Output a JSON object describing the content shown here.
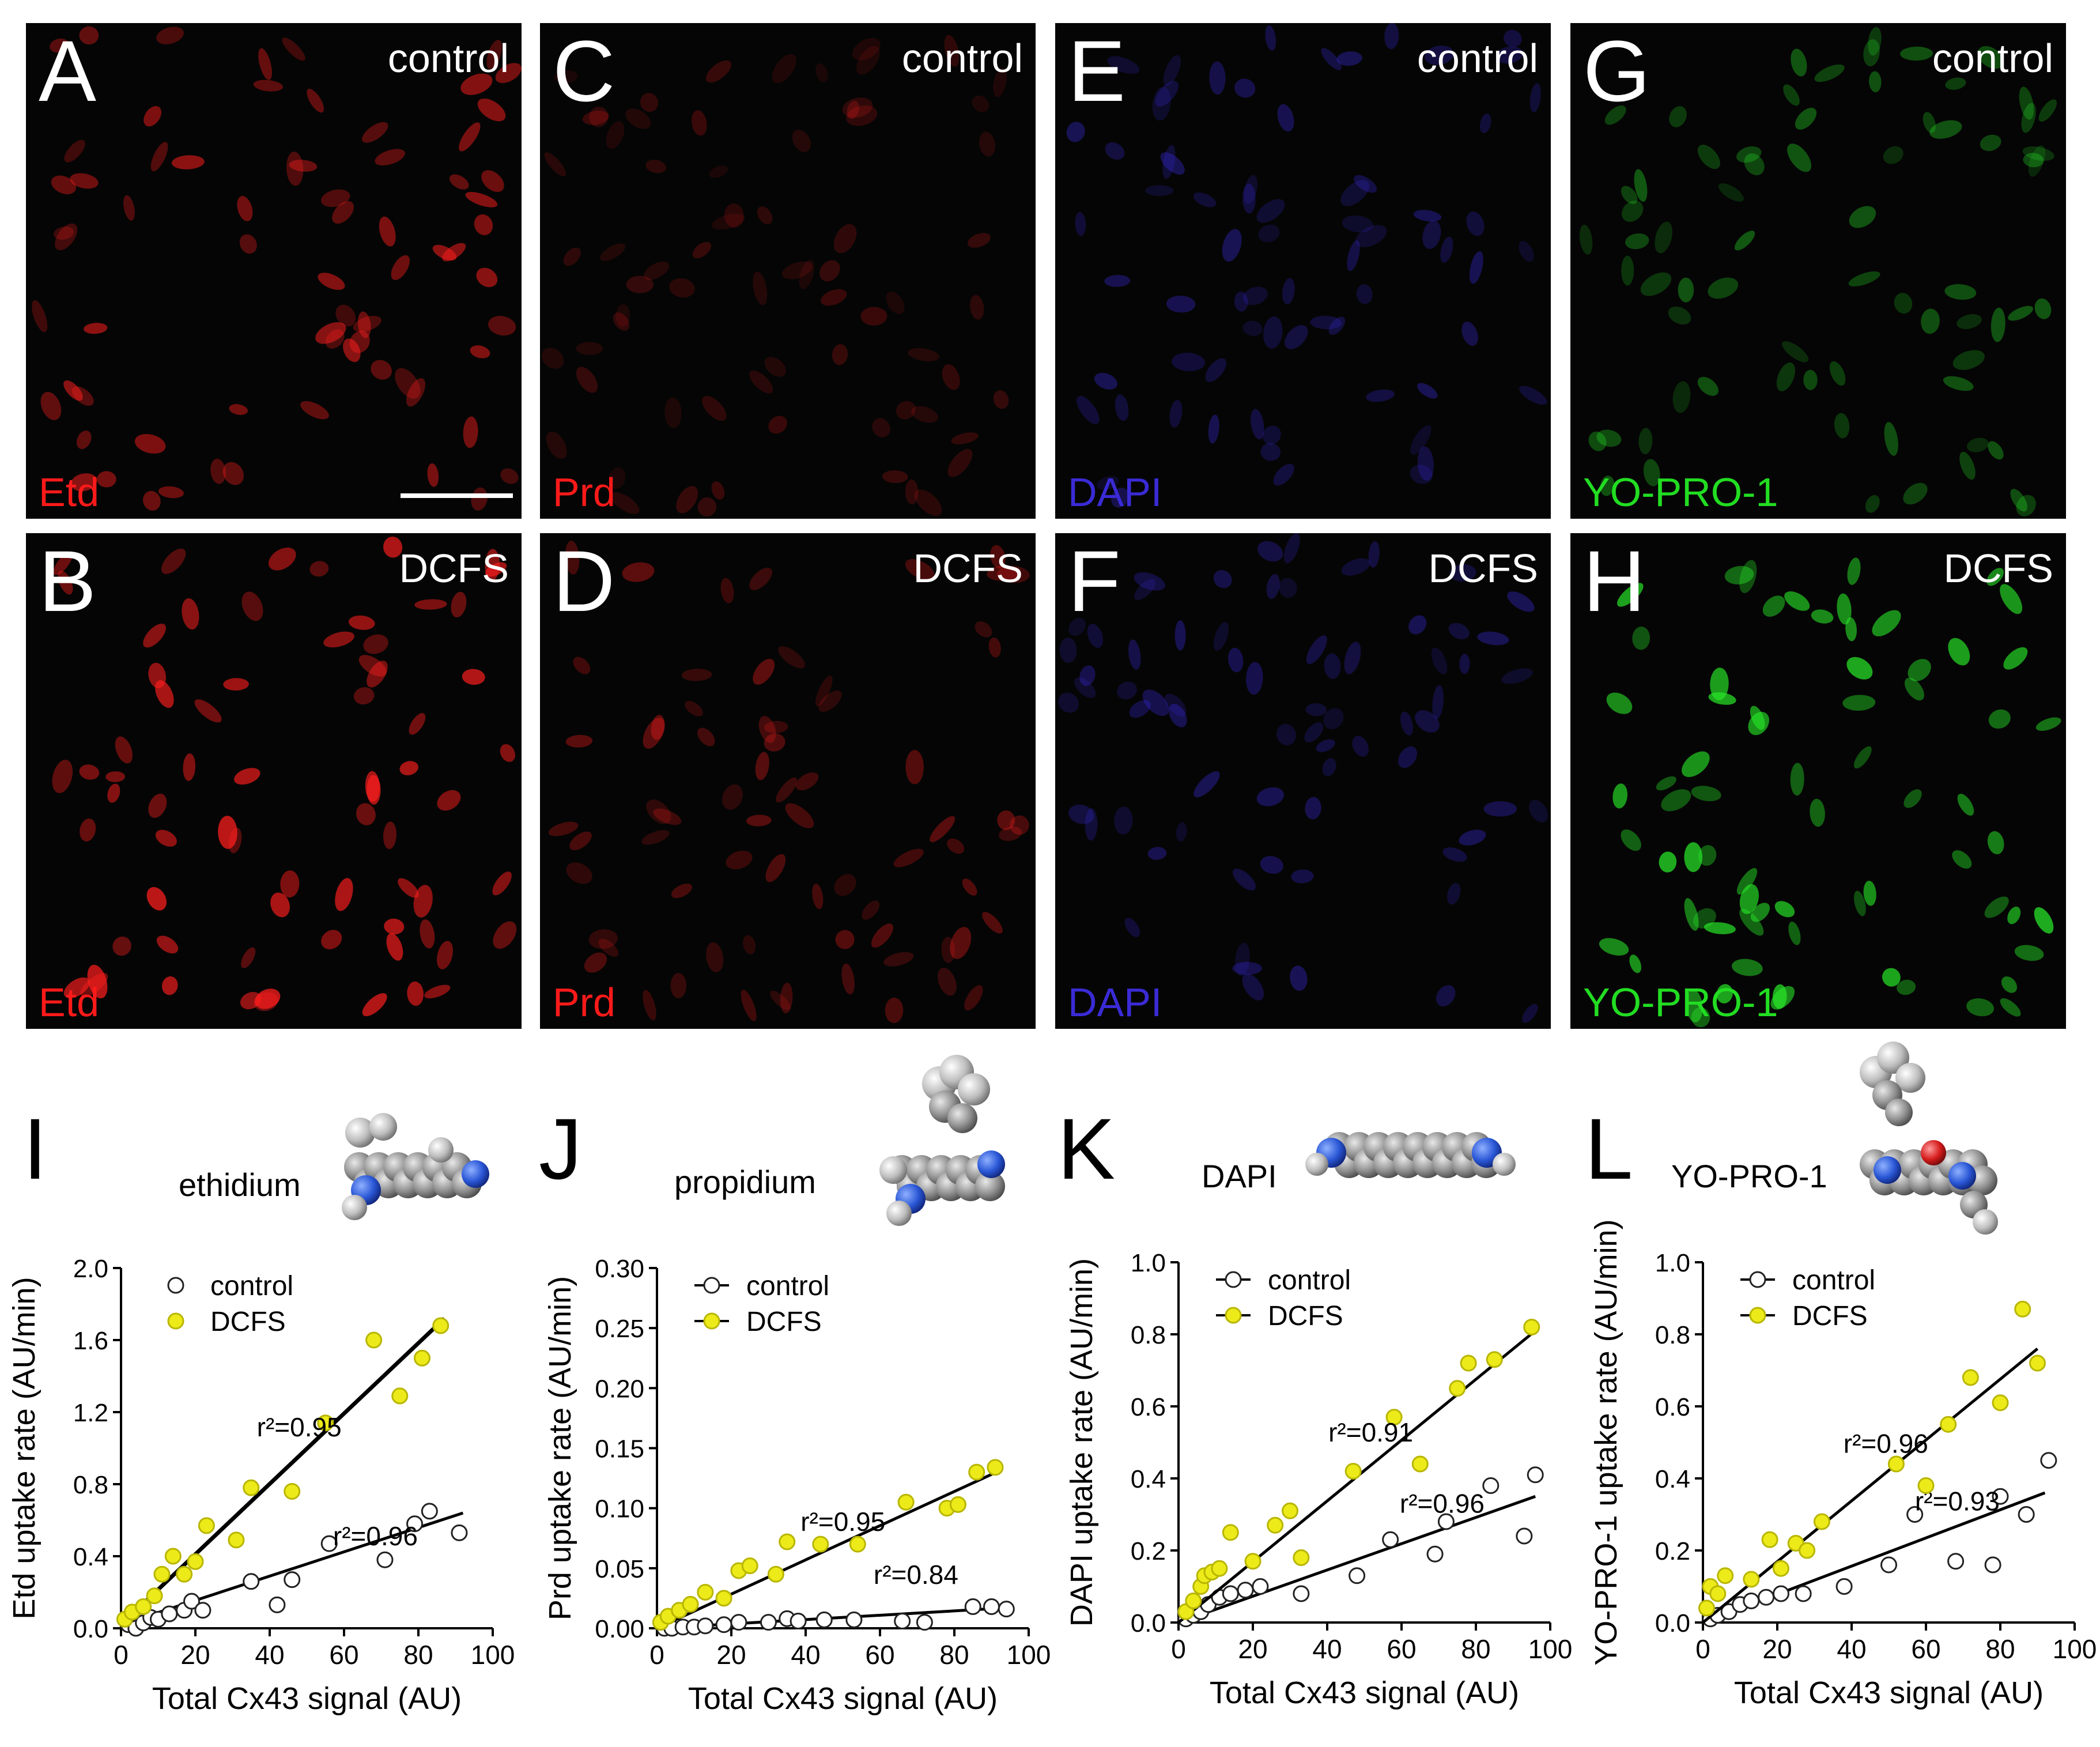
{
  "colors": {
    "red": "#ff1a1a",
    "blue": "#3a2bd6",
    "green": "#22dd22",
    "yellow_marker": "#ecea18",
    "open_marker_stroke": "#222222"
  },
  "micrographs": [
    {
      "letter": "A",
      "condition": "control",
      "dye": "Etd",
      "channel": "red",
      "cells": "sparse",
      "scale_bar": true
    },
    {
      "letter": "B",
      "condition": "DCFS",
      "dye": "Etd",
      "channel": "red",
      "cells": "bright"
    },
    {
      "letter": "C",
      "condition": "control",
      "dye": "Prd",
      "channel": "red",
      "cells": "faint"
    },
    {
      "letter": "D",
      "condition": "DCFS",
      "dye": "Prd",
      "channel": "red",
      "cells": "dim"
    },
    {
      "letter": "E",
      "condition": "control",
      "dye": "DAPI",
      "channel": "blue",
      "cells": "dim"
    },
    {
      "letter": "F",
      "condition": "DCFS",
      "dye": "DAPI",
      "channel": "blue",
      "cells": "dim"
    },
    {
      "letter": "G",
      "condition": "control",
      "dye": "YO-PRO-1",
      "channel": "green",
      "cells": "dim"
    },
    {
      "letter": "H",
      "condition": "DCFS",
      "dye": "YO-PRO-1",
      "channel": "green",
      "cells": "bright"
    }
  ],
  "chart_data": [
    {
      "letter": "I",
      "molecule": "ethidium",
      "type": "scatter",
      "xlabel": "Total Cx43 signal (AU)",
      "ylabel": "Etd uptake rate (AU/min)",
      "xlim": [
        0,
        100
      ],
      "ylim": [
        0,
        2.0
      ],
      "xticks": [
        "0",
        "20",
        "40",
        "60",
        "80",
        "100"
      ],
      "yticks": [
        "0.0",
        "0.4",
        "0.8",
        "1.2",
        "1.6",
        "2.0"
      ],
      "legend_position": "top-left",
      "series": [
        {
          "name": "control",
          "marker": "open",
          "points": [
            [
              2,
              0.02
            ],
            [
              4,
              0.0
            ],
            [
              6,
              0.03
            ],
            [
              8,
              0.06
            ],
            [
              10,
              0.05
            ],
            [
              13,
              0.08
            ],
            [
              17,
              0.1
            ],
            [
              19,
              0.15
            ],
            [
              22,
              0.1
            ],
            [
              35,
              0.26
            ],
            [
              42,
              0.13
            ],
            [
              46,
              0.27
            ],
            [
              56,
              0.47
            ],
            [
              71,
              0.38
            ],
            [
              79,
              0.58
            ],
            [
              83,
              0.65
            ],
            [
              91,
              0.53
            ]
          ],
          "fit": {
            "x": [
              0,
              92
            ],
            "y": [
              0.02,
              0.64
            ],
            "r2_label": "r²=0.96"
          }
        },
        {
          "name": "DCFS",
          "marker": "filled",
          "points": [
            [
              1,
              0.05
            ],
            [
              3,
              0.09
            ],
            [
              6,
              0.12
            ],
            [
              9,
              0.18
            ],
            [
              11,
              0.3
            ],
            [
              14,
              0.4
            ],
            [
              17,
              0.3
            ],
            [
              20,
              0.37
            ],
            [
              23,
              0.57
            ],
            [
              31,
              0.49
            ],
            [
              35,
              0.78
            ],
            [
              46,
              0.76
            ],
            [
              55,
              1.14
            ],
            [
              68,
              1.6
            ],
            [
              75,
              1.29
            ],
            [
              81,
              1.5
            ],
            [
              86,
              1.68
            ]
          ],
          "fit": {
            "x": [
              0,
              87
            ],
            "y": [
              0.02,
              1.72
            ],
            "r2_label": "r²=0.95"
          }
        }
      ]
    },
    {
      "letter": "J",
      "molecule": "propidium",
      "type": "scatter",
      "xlabel": "Total Cx43 signal (AU)",
      "ylabel": "Prd uptake rate (AU/min)",
      "xlim": [
        0,
        100
      ],
      "ylim": [
        0,
        0.3
      ],
      "xticks": [
        "0",
        "20",
        "40",
        "60",
        "80",
        "100"
      ],
      "yticks": [
        "0.00",
        "0.05",
        "0.10",
        "0.15",
        "0.20",
        "0.25",
        "0.30"
      ],
      "legend_position": "top-left",
      "series": [
        {
          "name": "control",
          "marker": "open",
          "points": [
            [
              2,
              0.0
            ],
            [
              4,
              0.0
            ],
            [
              7,
              0.001
            ],
            [
              10,
              0.001
            ],
            [
              13,
              0.002
            ],
            [
              18,
              0.003
            ],
            [
              22,
              0.005
            ],
            [
              30,
              0.005
            ],
            [
              35,
              0.008
            ],
            [
              38,
              0.006
            ],
            [
              45,
              0.007
            ],
            [
              53,
              0.007
            ],
            [
              66,
              0.006
            ],
            [
              72,
              0.005
            ],
            [
              85,
              0.018
            ],
            [
              90,
              0.018
            ],
            [
              94,
              0.016
            ]
          ],
          "fit": {
            "x": [
              0,
              94
            ],
            "y": [
              0.0,
              0.017
            ],
            "r2_label": "r²=0.84"
          }
        },
        {
          "name": "DCFS",
          "marker": "filled",
          "points": [
            [
              1,
              0.005
            ],
            [
              3,
              0.01
            ],
            [
              6,
              0.015
            ],
            [
              9,
              0.02
            ],
            [
              13,
              0.03
            ],
            [
              18,
              0.025
            ],
            [
              22,
              0.048
            ],
            [
              25,
              0.052
            ],
            [
              32,
              0.045
            ],
            [
              35,
              0.072
            ],
            [
              44,
              0.07
            ],
            [
              54,
              0.07
            ],
            [
              67,
              0.105
            ],
            [
              78,
              0.1
            ],
            [
              81,
              0.103
            ],
            [
              86,
              0.13
            ],
            [
              91,
              0.134
            ]
          ],
          "fit": {
            "x": [
              0,
              92
            ],
            "y": [
              0.0,
              0.131
            ],
            "r2_label": "r²=0.95"
          }
        }
      ]
    },
    {
      "letter": "K",
      "molecule": "DAPI",
      "type": "scatter",
      "xlabel": "Total Cx43 signal (AU)",
      "ylabel": "DAPI uptake rate (AU/min)",
      "xlim": [
        0,
        100
      ],
      "ylim": [
        0,
        1.0
      ],
      "xticks": [
        "0",
        "20",
        "40",
        "60",
        "80",
        "100"
      ],
      "yticks": [
        "0.0",
        "0.2",
        "0.4",
        "0.6",
        "0.8",
        "1.0"
      ],
      "legend_position": "top-left",
      "series": [
        {
          "name": "control",
          "marker": "open",
          "points": [
            [
              2,
              0.01
            ],
            [
              4,
              0.02
            ],
            [
              6,
              0.03
            ],
            [
              8,
              0.05
            ],
            [
              11,
              0.07
            ],
            [
              14,
              0.08
            ],
            [
              18,
              0.09
            ],
            [
              22,
              0.1
            ],
            [
              33,
              0.08
            ],
            [
              48,
              0.13
            ],
            [
              57,
              0.23
            ],
            [
              69,
              0.19
            ],
            [
              72,
              0.28
            ],
            [
              84,
              0.38
            ],
            [
              93,
              0.24
            ],
            [
              96,
              0.41
            ]
          ],
          "fit": {
            "x": [
              0,
              96
            ],
            "y": [
              0.0,
              0.35
            ],
            "r2_label": "r²=0.96"
          }
        },
        {
          "name": "DCFS",
          "marker": "filled",
          "points": [
            [
              2,
              0.03
            ],
            [
              4,
              0.06
            ],
            [
              6,
              0.1
            ],
            [
              7,
              0.13
            ],
            [
              9,
              0.14
            ],
            [
              11,
              0.15
            ],
            [
              14,
              0.25
            ],
            [
              20,
              0.17
            ],
            [
              26,
              0.27
            ],
            [
              30,
              0.31
            ],
            [
              33,
              0.18
            ],
            [
              47,
              0.42
            ],
            [
              58,
              0.57
            ],
            [
              65,
              0.44
            ],
            [
              75,
              0.65
            ],
            [
              78,
              0.72
            ],
            [
              85,
              0.73
            ],
            [
              95,
              0.82
            ]
          ],
          "fit": {
            "x": [
              0,
              96
            ],
            "y": [
              0.0,
              0.81
            ],
            "r2_label": "r²=0.91"
          }
        }
      ]
    },
    {
      "letter": "L",
      "molecule": "YO-PRO-1",
      "type": "scatter",
      "xlabel": "Total Cx43 signal (AU)",
      "ylabel": "YO-PRO-1 uptake rate (AU/min)",
      "xlim": [
        0,
        100
      ],
      "ylim": [
        0,
        1.0
      ],
      "xticks": [
        "0",
        "20",
        "40",
        "60",
        "80",
        "100"
      ],
      "yticks": [
        "0.0",
        "0.2",
        "0.4",
        "0.6",
        "0.8",
        "1.0"
      ],
      "legend_position": "top-left",
      "series": [
        {
          "name": "control",
          "marker": "open",
          "points": [
            [
              2,
              0.01
            ],
            [
              4,
              0.02
            ],
            [
              7,
              0.03
            ],
            [
              10,
              0.05
            ],
            [
              13,
              0.06
            ],
            [
              17,
              0.07
            ],
            [
              21,
              0.08
            ],
            [
              27,
              0.08
            ],
            [
              38,
              0.1
            ],
            [
              50,
              0.16
            ],
            [
              57,
              0.3
            ],
            [
              68,
              0.17
            ],
            [
              78,
              0.16
            ],
            [
              80,
              0.35
            ],
            [
              87,
              0.3
            ],
            [
              93,
              0.45
            ]
          ],
          "fit": {
            "x": [
              0,
              92
            ],
            "y": [
              0.0,
              0.36
            ],
            "r2_label": "r²=0.93"
          }
        },
        {
          "name": "DCFS",
          "marker": "filled",
          "points": [
            [
              1,
              0.04
            ],
            [
              2,
              0.1
            ],
            [
              4,
              0.08
            ],
            [
              6,
              0.13
            ],
            [
              13,
              0.12
            ],
            [
              18,
              0.23
            ],
            [
              21,
              0.15
            ],
            [
              25,
              0.22
            ],
            [
              28,
              0.2
            ],
            [
              32,
              0.28
            ],
            [
              52,
              0.44
            ],
            [
              60,
              0.38
            ],
            [
              66,
              0.55
            ],
            [
              72,
              0.68
            ],
            [
              80,
              0.61
            ],
            [
              86,
              0.87
            ],
            [
              90,
              0.72
            ]
          ],
          "fit": {
            "x": [
              0,
              90
            ],
            "y": [
              0.0,
              0.76
            ],
            "r2_label": "r²=0.96"
          }
        }
      ]
    }
  ]
}
